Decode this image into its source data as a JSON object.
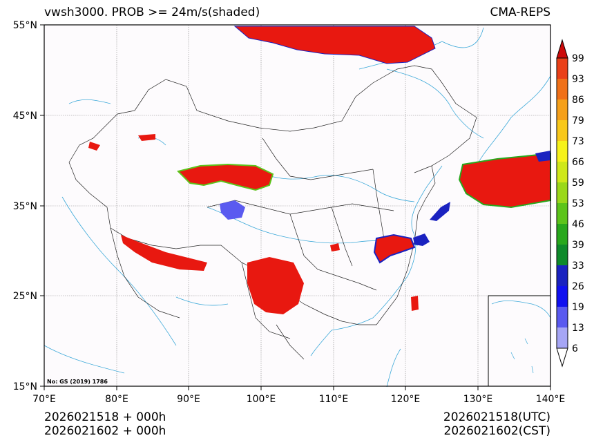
{
  "header": {
    "title_left": "vwsh3000. PROB >= 24m/s(shaded)",
    "title_right": "CMA-REPS"
  },
  "map": {
    "lat_labels": [
      "55°N",
      "45°N",
      "35°N",
      "25°N",
      "15°N"
    ],
    "lon_labels": [
      "70°E",
      "80°E",
      "90°E",
      "100°E",
      "110°E",
      "120°E",
      "130°E",
      "140°E"
    ],
    "approval_note": "No: GS (2019) 1786",
    "background_color": "#fdfbfd",
    "river_color": "#3aa8d8",
    "border_color": "#222222"
  },
  "colorbar": {
    "levels": [
      "6",
      "13",
      "19",
      "26",
      "33",
      "39",
      "46",
      "53",
      "59",
      "66",
      "73",
      "79",
      "86",
      "93",
      "99"
    ],
    "colors": [
      "#a6a6f5",
      "#5a5af0",
      "#1010f0",
      "#1a22c0",
      "#0e8a2a",
      "#28a81c",
      "#5cc41a",
      "#9ad81a",
      "#cfe81a",
      "#f6f21a",
      "#f8c81a",
      "#f5a01a",
      "#f07018",
      "#ea4018",
      "#e81810",
      "#cc0a0a"
    ]
  },
  "footer": {
    "init_utc": "2026021518  +  000h",
    "init_cst": "2026021602  +  000h",
    "valid_utc": "2026021518(UTC)",
    "valid_cst": "2026021602(CST)"
  }
}
